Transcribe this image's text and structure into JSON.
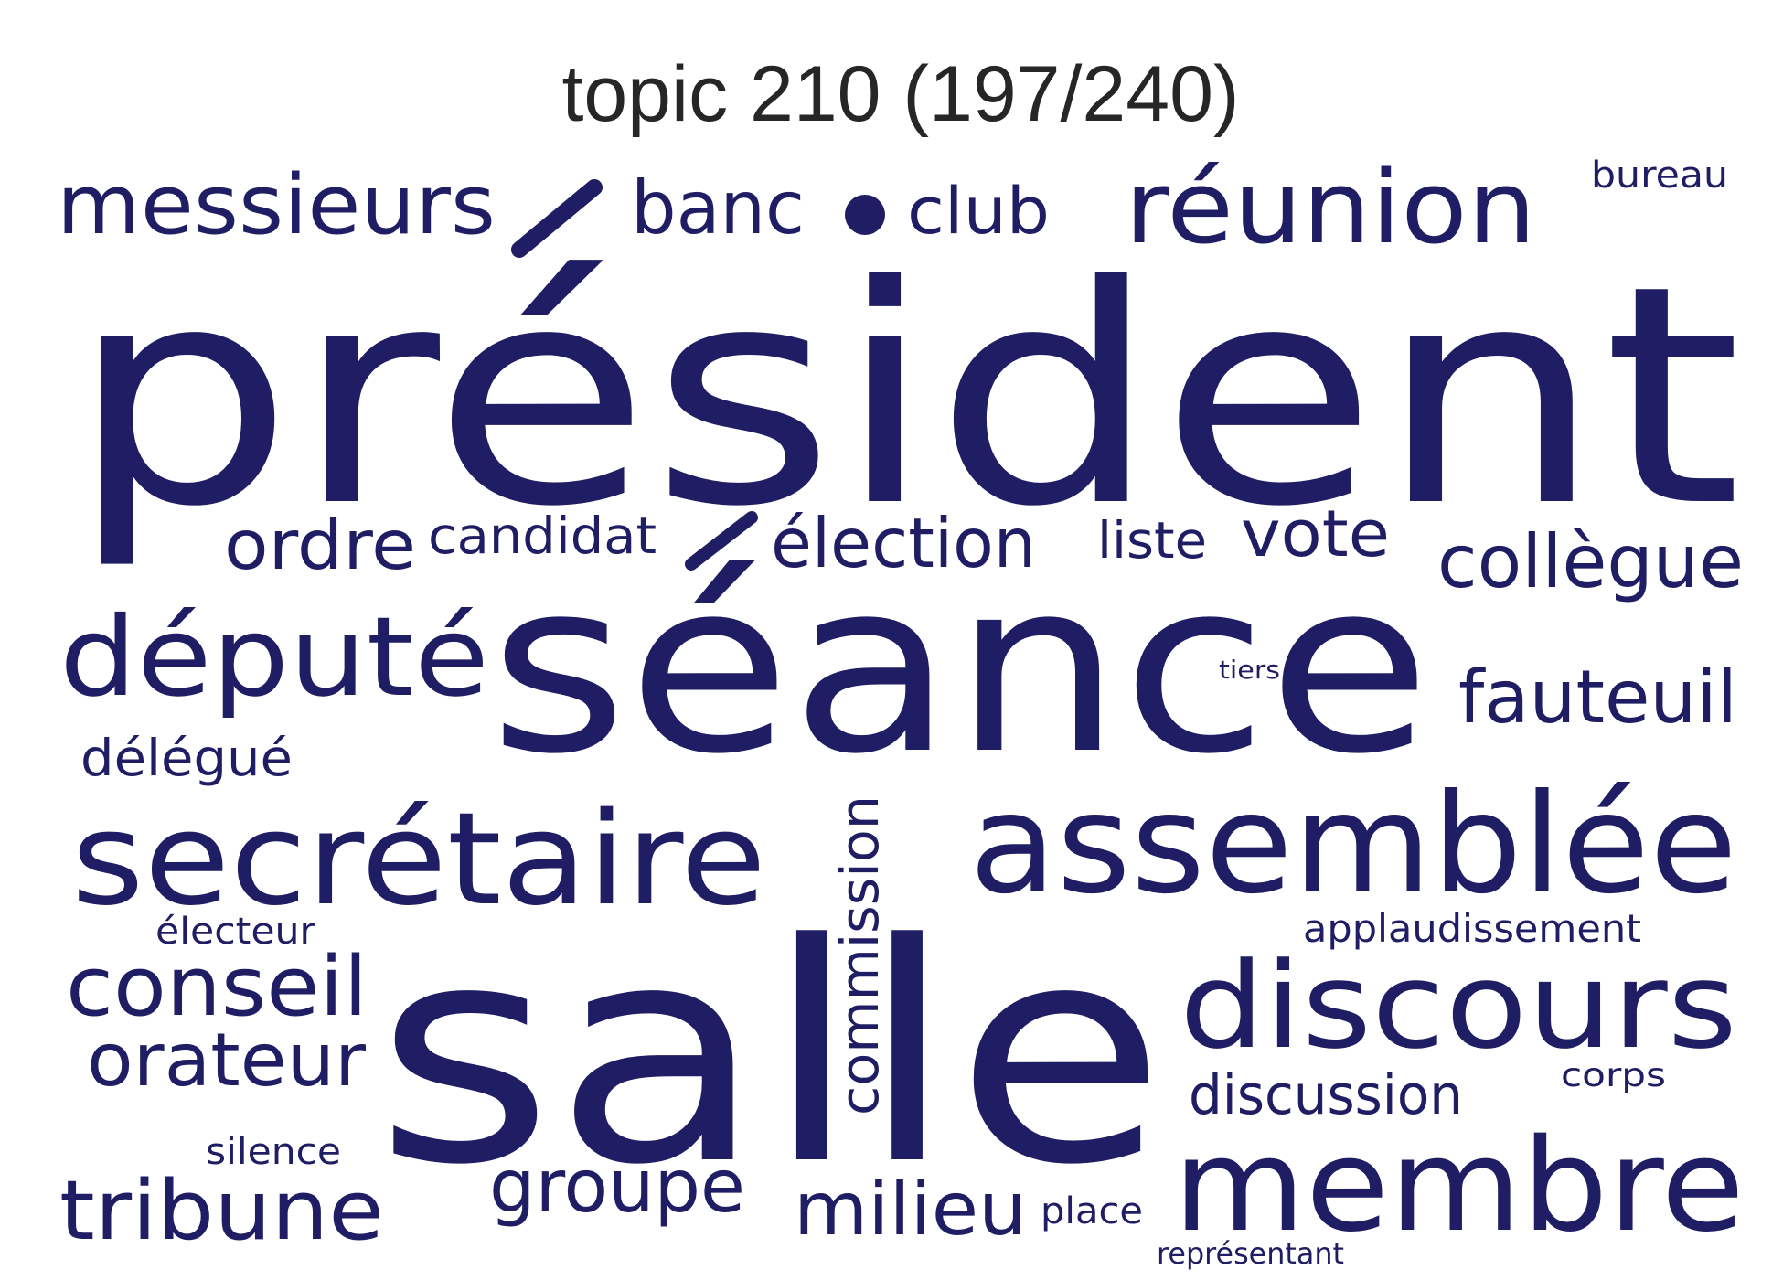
{
  "title": "topic 210 (197/240)",
  "word_color": "#1f1d63",
  "title_color": "#262626",
  "words": [
    {
      "text": "président",
      "orientation": "horizontal"
    },
    {
      "text": "séance",
      "orientation": "horizontal"
    },
    {
      "text": "salle",
      "orientation": "horizontal"
    },
    {
      "text": "assemblée",
      "orientation": "horizontal"
    },
    {
      "text": "membre",
      "orientation": "horizontal"
    },
    {
      "text": "discours",
      "orientation": "horizontal"
    },
    {
      "text": "secrétaire",
      "orientation": "horizontal"
    },
    {
      "text": "député",
      "orientation": "horizontal"
    },
    {
      "text": "réunion",
      "orientation": "horizontal"
    },
    {
      "text": "messieurs",
      "orientation": "horizontal"
    },
    {
      "text": "conseil",
      "orientation": "horizontal"
    },
    {
      "text": "tribune",
      "orientation": "horizontal"
    },
    {
      "text": "collègue",
      "orientation": "horizontal"
    },
    {
      "text": "fauteuil",
      "orientation": "horizontal"
    },
    {
      "text": "orateur",
      "orientation": "horizontal"
    },
    {
      "text": "élection",
      "orientation": "horizontal"
    },
    {
      "text": "milieu",
      "orientation": "horizontal"
    },
    {
      "text": "groupe",
      "orientation": "horizontal"
    },
    {
      "text": "banc",
      "orientation": "horizontal"
    },
    {
      "text": "club",
      "orientation": "horizontal"
    },
    {
      "text": "ordre",
      "orientation": "horizontal"
    },
    {
      "text": "vote",
      "orientation": "horizontal"
    },
    {
      "text": "commission",
      "orientation": "vertical"
    },
    {
      "text": "discussion",
      "orientation": "horizontal"
    },
    {
      "text": "candidat",
      "orientation": "horizontal"
    },
    {
      "text": "liste",
      "orientation": "horizontal"
    },
    {
      "text": "délégué",
      "orientation": "horizontal"
    },
    {
      "text": "applaudissement",
      "orientation": "horizontal"
    },
    {
      "text": "bureau",
      "orientation": "horizontal"
    },
    {
      "text": "électeur",
      "orientation": "horizontal"
    },
    {
      "text": "silence",
      "orientation": "horizontal"
    },
    {
      "text": "place",
      "orientation": "horizontal"
    },
    {
      "text": "corps",
      "orientation": "horizontal"
    },
    {
      "text": "représentant",
      "orientation": "horizontal"
    },
    {
      "text": "tiers",
      "orientation": "horizontal"
    }
  ]
}
